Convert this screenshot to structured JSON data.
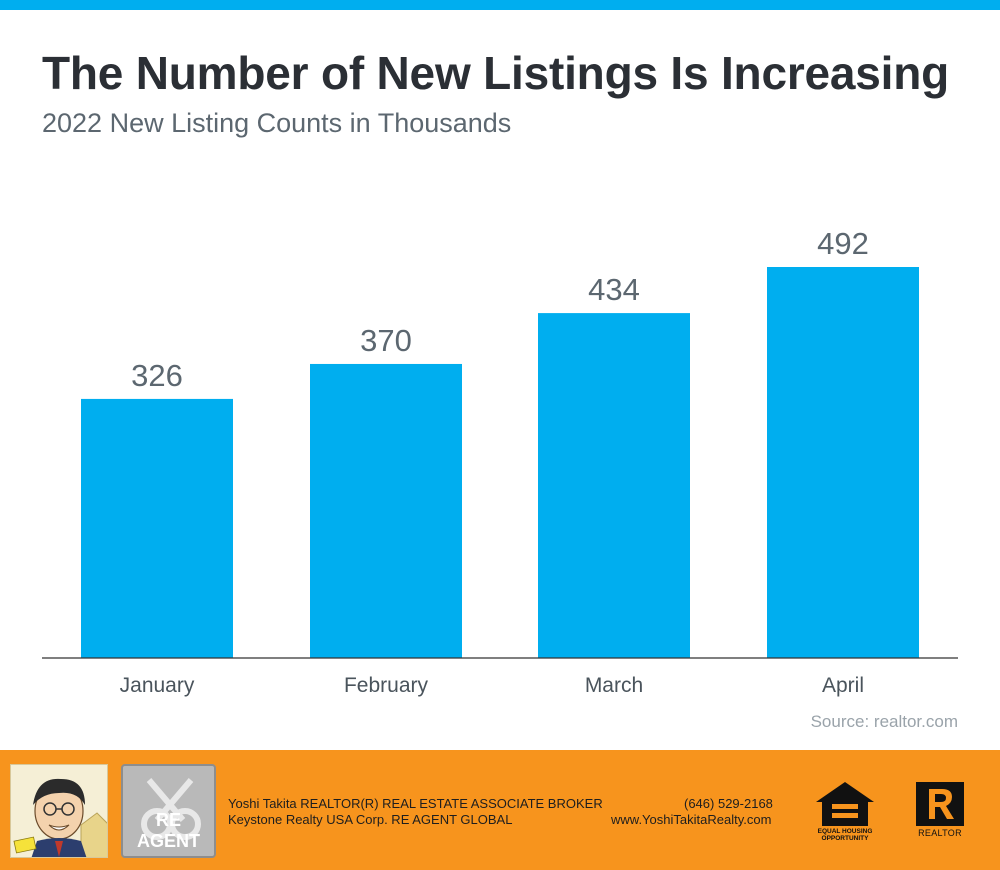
{
  "header": {
    "title": "The Number of New Listings Is Increasing",
    "subtitle": "2022 New Listing Counts in Thousands"
  },
  "chart_data": {
    "type": "bar",
    "title": "The Number of New Listings Is Increasing",
    "subtitle": "2022 New Listing Counts in Thousands",
    "categories": [
      "January",
      "February",
      "March",
      "April"
    ],
    "values": [
      326,
      370,
      434,
      492
    ],
    "data_labels": [
      "326",
      "370",
      "434",
      "492"
    ],
    "xlabel": "",
    "ylabel": "",
    "ylim": [
      0,
      492
    ],
    "grid": false,
    "legend": "none",
    "bar_color": "#00aeef"
  },
  "source": "Source: realtor.com",
  "footer": {
    "line1_left": "Yoshi Takita REALTOR(R) REAL ESTATE ASSOCIATE BROKER",
    "line2_left": "Keystone Realty USA Corp.  RE AGENT GLOBAL",
    "phone": "(646) 529-2168",
    "website": "www.YoshiTakitaRealty.com",
    "re_agent_logo": "RE AGENT",
    "equal_housing_text": "EQUAL HOUSING OPPORTUNITY",
    "realtor_logo_text": "REALTOR",
    "background_color": "#f7941d"
  },
  "colors": {
    "accent": "#00aeef",
    "title": "#2b2f35",
    "subtitle": "#5c6770"
  }
}
